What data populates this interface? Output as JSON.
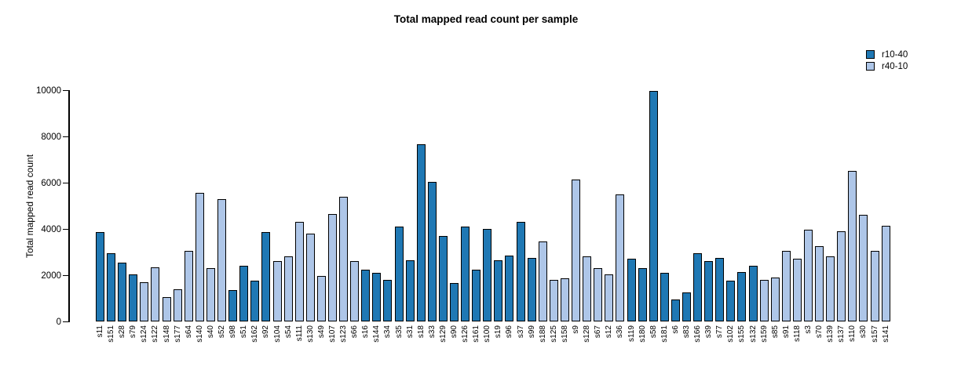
{
  "chart_data": {
    "type": "bar",
    "title": "Total mapped read count per sample",
    "ylabel": "Total mapped read count",
    "ylim": [
      0,
      10000
    ],
    "yticks": [
      0,
      2000,
      4000,
      6000,
      8000,
      10000
    ],
    "grid": false,
    "legend_position": "top-right",
    "bar_border_color": "#000000",
    "groups": [
      {
        "name": "r10-40",
        "color": "#1f78b4"
      },
      {
        "name": "r40-10",
        "color": "#aec6e8"
      }
    ],
    "samples": [
      {
        "name": "s11",
        "group": "r10-40",
        "value": 3850
      },
      {
        "name": "s151",
        "group": "r10-40",
        "value": 2950
      },
      {
        "name": "s28",
        "group": "r10-40",
        "value": 2550
      },
      {
        "name": "s79",
        "group": "r10-40",
        "value": 2050
      },
      {
        "name": "s124",
        "group": "r40-10",
        "value": 1700
      },
      {
        "name": "s122",
        "group": "r40-10",
        "value": 2350
      },
      {
        "name": "s148",
        "group": "r40-10",
        "value": 1050
      },
      {
        "name": "s177",
        "group": "r40-10",
        "value": 1400
      },
      {
        "name": "s64",
        "group": "r40-10",
        "value": 3050
      },
      {
        "name": "s140",
        "group": "r40-10",
        "value": 5550
      },
      {
        "name": "s40",
        "group": "r40-10",
        "value": 2300
      },
      {
        "name": "s52",
        "group": "r40-10",
        "value": 5300
      },
      {
        "name": "s98",
        "group": "r10-40",
        "value": 1350
      },
      {
        "name": "s51",
        "group": "r10-40",
        "value": 2400
      },
      {
        "name": "s162",
        "group": "r10-40",
        "value": 1750
      },
      {
        "name": "s92",
        "group": "r10-40",
        "value": 3850
      },
      {
        "name": "s104",
        "group": "r40-10",
        "value": 2600
      },
      {
        "name": "s54",
        "group": "r40-10",
        "value": 2800
      },
      {
        "name": "s111",
        "group": "r40-10",
        "value": 4300
      },
      {
        "name": "s130",
        "group": "r40-10",
        "value": 3800
      },
      {
        "name": "s49",
        "group": "r40-10",
        "value": 1950
      },
      {
        "name": "s107",
        "group": "r40-10",
        "value": 4650
      },
      {
        "name": "s123",
        "group": "r40-10",
        "value": 5400
      },
      {
        "name": "s66",
        "group": "r40-10",
        "value": 2600
      },
      {
        "name": "s16",
        "group": "r10-40",
        "value": 2250
      },
      {
        "name": "s144",
        "group": "r10-40",
        "value": 2100
      },
      {
        "name": "s34",
        "group": "r10-40",
        "value": 1800
      },
      {
        "name": "s35",
        "group": "r10-40",
        "value": 4100
      },
      {
        "name": "s31",
        "group": "r10-40",
        "value": 2650
      },
      {
        "name": "s18",
        "group": "r10-40",
        "value": 7650
      },
      {
        "name": "s33",
        "group": "r10-40",
        "value": 6050
      },
      {
        "name": "s129",
        "group": "r10-40",
        "value": 3700
      },
      {
        "name": "s90",
        "group": "r10-40",
        "value": 1650
      },
      {
        "name": "s126",
        "group": "r10-40",
        "value": 4100
      },
      {
        "name": "s161",
        "group": "r10-40",
        "value": 2250
      },
      {
        "name": "s100",
        "group": "r10-40",
        "value": 4000
      },
      {
        "name": "s19",
        "group": "r10-40",
        "value": 2650
      },
      {
        "name": "s96",
        "group": "r10-40",
        "value": 2850
      },
      {
        "name": "s37",
        "group": "r10-40",
        "value": 4300
      },
      {
        "name": "s99",
        "group": "r10-40",
        "value": 2750
      },
      {
        "name": "s188",
        "group": "r40-10",
        "value": 3450
      },
      {
        "name": "s125",
        "group": "r40-10",
        "value": 1800
      },
      {
        "name": "s158",
        "group": "r40-10",
        "value": 1850
      },
      {
        "name": "s9",
        "group": "r40-10",
        "value": 6150
      },
      {
        "name": "s128",
        "group": "r40-10",
        "value": 2800
      },
      {
        "name": "s67",
        "group": "r40-10",
        "value": 2300
      },
      {
        "name": "s12",
        "group": "r40-10",
        "value": 2050
      },
      {
        "name": "s36",
        "group": "r40-10",
        "value": 5500
      },
      {
        "name": "s119",
        "group": "r10-40",
        "value": 2700
      },
      {
        "name": "s180",
        "group": "r10-40",
        "value": 2300
      },
      {
        "name": "s58",
        "group": "r10-40",
        "value": 9950
      },
      {
        "name": "s181",
        "group": "r10-40",
        "value": 2100
      },
      {
        "name": "s6",
        "group": "r10-40",
        "value": 950
      },
      {
        "name": "s83",
        "group": "r10-40",
        "value": 1250
      },
      {
        "name": "s166",
        "group": "r10-40",
        "value": 2950
      },
      {
        "name": "s39",
        "group": "r10-40",
        "value": 2600
      },
      {
        "name": "s77",
        "group": "r10-40",
        "value": 2750
      },
      {
        "name": "s102",
        "group": "r10-40",
        "value": 1750
      },
      {
        "name": "s155",
        "group": "r10-40",
        "value": 2150
      },
      {
        "name": "s132",
        "group": "r10-40",
        "value": 2400
      },
      {
        "name": "s159",
        "group": "r40-10",
        "value": 1800
      },
      {
        "name": "s85",
        "group": "r40-10",
        "value": 1900
      },
      {
        "name": "s91",
        "group": "r40-10",
        "value": 3050
      },
      {
        "name": "s118",
        "group": "r40-10",
        "value": 2700
      },
      {
        "name": "s3",
        "group": "r40-10",
        "value": 3950
      },
      {
        "name": "s70",
        "group": "r40-10",
        "value": 3250
      },
      {
        "name": "s139",
        "group": "r40-10",
        "value": 2800
      },
      {
        "name": "s137",
        "group": "r40-10",
        "value": 3900
      },
      {
        "name": "s110",
        "group": "r40-10",
        "value": 6500
      },
      {
        "name": "s30",
        "group": "r40-10",
        "value": 4600
      },
      {
        "name": "s157",
        "group": "r40-10",
        "value": 3050
      },
      {
        "name": "s141",
        "group": "r40-10",
        "value": 4150
      }
    ]
  }
}
